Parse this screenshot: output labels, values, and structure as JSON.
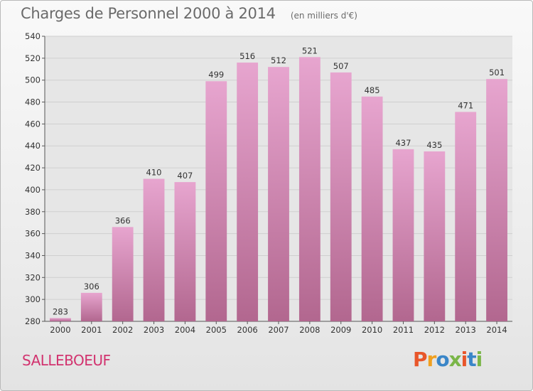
{
  "header": {
    "title": "Charges de Personnel 2000 à 2014",
    "subtitle": "(en milliers d'€)"
  },
  "footer": {
    "commune": "SALLEBOEUF",
    "logo_text": "Proxiti",
    "logo_colors": [
      "#e8562a",
      "#f0a020",
      "#3a86c8",
      "#7ab648",
      "#e8562a",
      "#3a86c8",
      "#7ab648"
    ]
  },
  "colors": {
    "bar_top": "#e7a5cf",
    "bar_bottom": "#b2678f",
    "grid": "#cfcfcf",
    "axis": "#555555",
    "plot_bg": "#e6e6e6"
  },
  "chart_data": {
    "type": "bar",
    "title": "Charges de Personnel 2000 à 2014",
    "subtitle": "(en milliers d'€)",
    "categories": [
      "2000",
      "2001",
      "2002",
      "2003",
      "2004",
      "2005",
      "2006",
      "2007",
      "2008",
      "2009",
      "2010",
      "2011",
      "2012",
      "2013",
      "2014"
    ],
    "values": [
      283,
      306,
      366,
      410,
      407,
      499,
      516,
      512,
      521,
      507,
      485,
      437,
      435,
      471,
      501
    ],
    "ylim": [
      280,
      540
    ],
    "yticks": [
      280,
      300,
      320,
      340,
      360,
      380,
      400,
      420,
      440,
      460,
      480,
      500,
      520,
      540
    ],
    "grid": true
  }
}
